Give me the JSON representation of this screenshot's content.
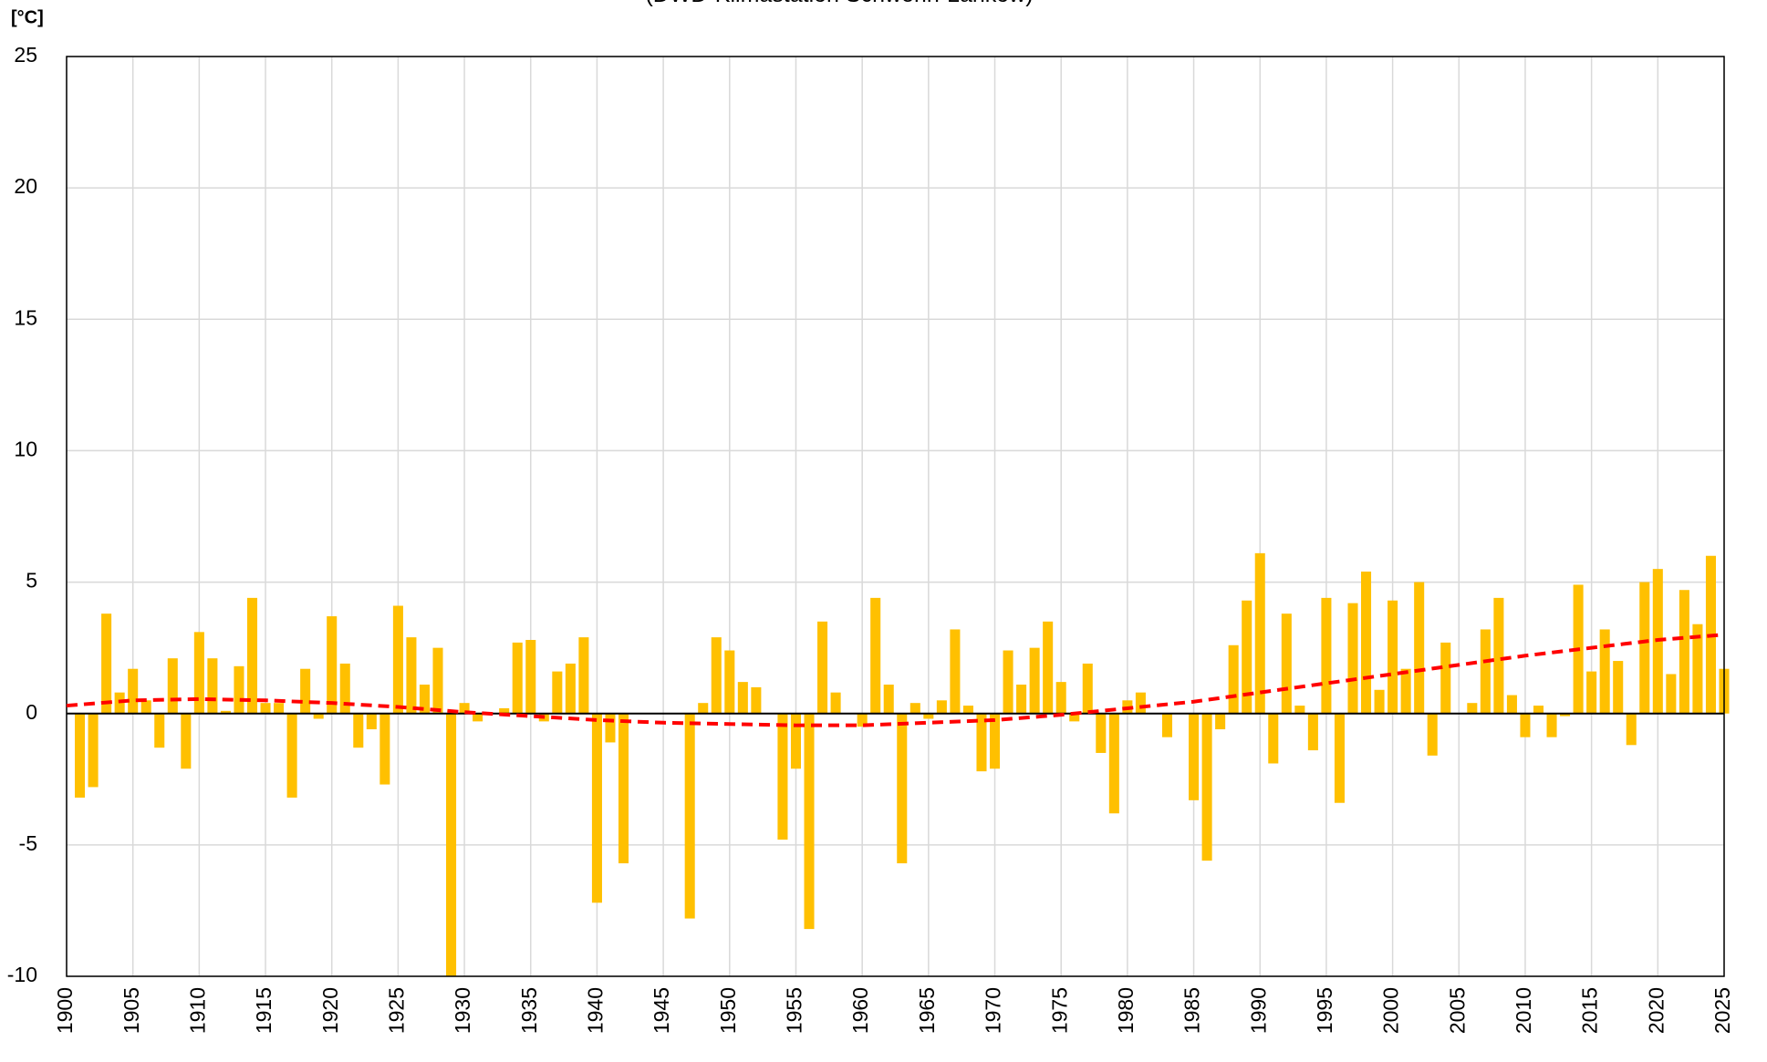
{
  "chart_data": {
    "type": "bar",
    "subtitle": "(DWD-Klimastation Schwerin-Lankow)",
    "y_label": "[°C]",
    "color": "#ffc000",
    "xlim": [
      1900,
      2025
    ],
    "xticks": [
      1900,
      1905,
      1910,
      1915,
      1920,
      1925,
      1930,
      1935,
      1940,
      1945,
      1950,
      1955,
      1960,
      1965,
      1970,
      1975,
      1980,
      1985,
      1990,
      1995,
      2000,
      2005,
      2010,
      2015,
      2020,
      2025
    ],
    "ylim": [
      -10,
      25
    ],
    "yticks": [
      -10,
      -5,
      0,
      5,
      10,
      15,
      20,
      25
    ],
    "grid": true,
    "x": [
      1901,
      1902,
      1903,
      1904,
      1905,
      1906,
      1907,
      1908,
      1909,
      1910,
      1911,
      1912,
      1913,
      1914,
      1915,
      1916,
      1917,
      1918,
      1919,
      1920,
      1921,
      1922,
      1923,
      1924,
      1925,
      1926,
      1927,
      1928,
      1929,
      1930,
      1931,
      1932,
      1933,
      1934,
      1935,
      1936,
      1937,
      1938,
      1939,
      1940,
      1941,
      1942,
      1943,
      1944,
      1945,
      1946,
      1947,
      1948,
      1949,
      1950,
      1951,
      1952,
      1953,
      1954,
      1955,
      1956,
      1957,
      1958,
      1959,
      1960,
      1961,
      1962,
      1963,
      1964,
      1965,
      1966,
      1967,
      1968,
      1969,
      1970,
      1971,
      1972,
      1973,
      1974,
      1975,
      1976,
      1977,
      1978,
      1979,
      1980,
      1981,
      1982,
      1983,
      1984,
      1985,
      1986,
      1987,
      1988,
      1989,
      1990,
      1991,
      1992,
      1993,
      1994,
      1995,
      1996,
      1997,
      1998,
      1999,
      2000,
      2001,
      2002,
      2003,
      2004,
      2005,
      2006,
      2007,
      2008,
      2009,
      2010,
      2011,
      2012,
      2013,
      2014,
      2015,
      2016,
      2017,
      2018,
      2019,
      2020,
      2021,
      2022,
      2023,
      2024,
      2025
    ],
    "values": [
      -3.2,
      -2.8,
      3.8,
      0.8,
      1.7,
      0.5,
      -1.3,
      2.1,
      -2.1,
      3.1,
      2.1,
      0.1,
      1.8,
      4.4,
      0.4,
      0.4,
      -3.2,
      1.7,
      -0.2,
      3.7,
      1.9,
      -1.3,
      -0.6,
      -2.7,
      4.1,
      2.9,
      1.1,
      2.5,
      -10,
      0.4,
      -0.3,
      0,
      0.2,
      2.7,
      2.8,
      -0.3,
      1.6,
      1.9,
      2.9,
      -7.2,
      -1.1,
      -5.7,
      0,
      0,
      0,
      0,
      -7.8,
      0.4,
      2.9,
      2.4,
      1.2,
      1.0,
      0,
      -4.8,
      -2.1,
      -8.2,
      3.5,
      0.8,
      0,
      -0.5,
      4.4,
      1.1,
      -5.7,
      0.4,
      -0.2,
      0.5,
      3.2,
      0.3,
      -2.2,
      -2.1,
      2.4,
      1.1,
      2.5,
      3.5,
      1.2,
      -0.3,
      1.9,
      -1.5,
      -3.8,
      0.5,
      0.8,
      0,
      -0.9,
      0,
      -3.3,
      -5.6,
      -0.6,
      2.6,
      4.3,
      6.1,
      -1.9,
      3.8,
      0.3,
      -1.4,
      4.4,
      -3.4,
      4.2,
      5.4,
      0.9,
      4.3,
      1.7,
      5.0,
      -1.6,
      2.7,
      0,
      0.4,
      3.2,
      4.4,
      0.7,
      -0.9,
      0.3,
      -0.9,
      -0.1,
      4.9,
      1.6,
      3.2,
      2.0,
      -1.2,
      5.0,
      5.5,
      1.5,
      4.7,
      3.4,
      6.0,
      1.7
    ],
    "trend": {
      "color": "#ff0000",
      "x": [
        1900,
        1905,
        1910,
        1915,
        1920,
        1925,
        1930,
        1935,
        1940,
        1945,
        1950,
        1955,
        1960,
        1965,
        1970,
        1975,
        1980,
        1985,
        1990,
        1995,
        2000,
        2005,
        2010,
        2015,
        2020,
        2025
      ],
      "values": [
        0.3,
        0.5,
        0.55,
        0.5,
        0.4,
        0.25,
        0.05,
        -0.1,
        -0.25,
        -0.35,
        -0.4,
        -0.45,
        -0.45,
        -0.35,
        -0.25,
        -0.05,
        0.2,
        0.45,
        0.8,
        1.15,
        1.5,
        1.85,
        2.2,
        2.5,
        2.8,
        3.0
      ]
    }
  }
}
